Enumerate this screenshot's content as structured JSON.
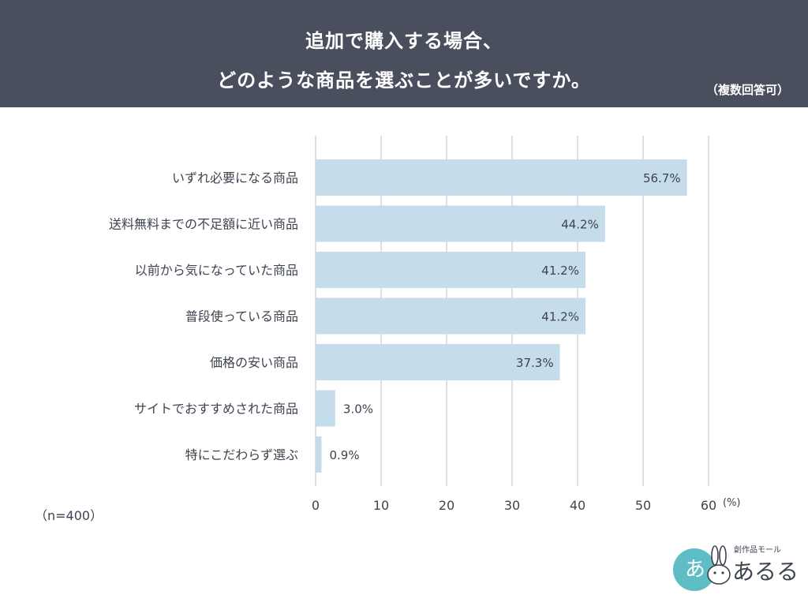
{
  "title": {
    "line1": "追加で購入する場合、",
    "line2": "どのような商品を選ぶことが多いですか。",
    "note": "（複数回答可）"
  },
  "sample_label": "（n=400）",
  "logo": {
    "subtitle": "創作品モール",
    "name": "あるる",
    "mark": "あ"
  },
  "colors": {
    "header_bg": "#4a4f5e",
    "bar": "#c5dcea",
    "grid": "#c9cbd1",
    "text": "#3d4350",
    "logo_teal": "#5fbdc6"
  },
  "chart_data": {
    "type": "bar",
    "orientation": "horizontal",
    "categories": [
      "いずれ必要になる商品",
      "送料無料までの不足額に近い商品",
      "以前から気になっていた商品",
      "普段使っている商品",
      "価格の安い商品",
      "サイトでおすすめされた商品",
      "特にこだわらず選ぶ"
    ],
    "values": [
      56.7,
      44.2,
      41.2,
      41.2,
      37.3,
      3.0,
      0.9
    ],
    "value_labels": [
      "56.7%",
      "44.2%",
      "41.2%",
      "41.2%",
      "37.3%",
      "3.0%",
      "0.9%"
    ],
    "xlim": [
      0,
      60
    ],
    "xticks": [
      0,
      10,
      20,
      30,
      40,
      50,
      60
    ],
    "x_unit_label": "(%)",
    "grid": true,
    "legend": "none"
  }
}
